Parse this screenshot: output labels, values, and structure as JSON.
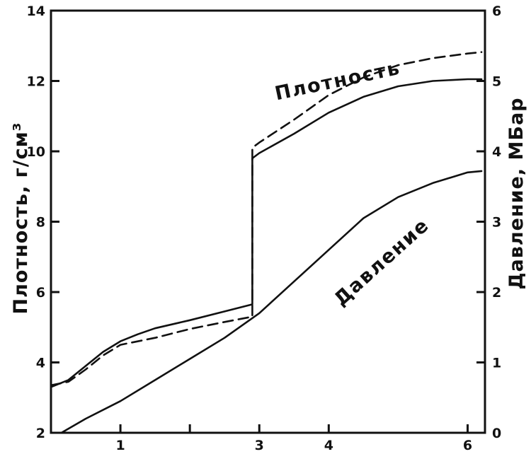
{
  "chart_data": {
    "type": "line",
    "x_ticks": [
      1,
      2,
      3,
      4,
      6
    ],
    "x_tick_labels": [
      "1",
      "",
      "3",
      "4",
      "6"
    ],
    "xlim": [
      0,
      6.25
    ],
    "y_left": {
      "label": "Плотность, г/см³",
      "lim": [
        2,
        14
      ],
      "ticks": [
        2,
        4,
        6,
        8,
        10,
        12,
        14
      ]
    },
    "y_right": {
      "label": "Давление, МБар",
      "lim": [
        0,
        6
      ],
      "ticks": [
        0,
        1,
        2,
        3,
        4,
        5,
        6
      ]
    },
    "series": [
      {
        "name": "Плотность",
        "axis": "left",
        "style": "solid",
        "x": [
          0,
          0.25,
          0.5,
          0.75,
          1.0,
          1.25,
          1.5,
          2.0,
          2.5,
          2.9,
          2.9,
          3.0,
          3.5,
          4.0,
          4.5,
          5.0,
          5.5,
          6.0,
          6.2
        ],
        "y": [
          3.3,
          3.5,
          3.9,
          4.3,
          4.6,
          4.8,
          4.97,
          5.2,
          5.45,
          5.65,
          9.8,
          9.95,
          10.5,
          11.1,
          11.55,
          11.85,
          12.0,
          12.05,
          12.05
        ]
      },
      {
        "name": "",
        "axis": "left",
        "style": "dashed",
        "x": [
          0,
          0.25,
          0.5,
          0.75,
          1.0,
          1.5,
          2.0,
          2.5,
          2.9,
          2.9,
          3.0,
          3.5,
          4.0,
          4.5,
          5.0,
          5.5,
          6.0,
          6.2
        ],
        "y": [
          3.35,
          3.45,
          3.8,
          4.2,
          4.5,
          4.7,
          4.95,
          5.15,
          5.3,
          10.1,
          10.25,
          10.9,
          11.6,
          12.1,
          12.45,
          12.65,
          12.78,
          12.82
        ]
      },
      {
        "name": "Давление",
        "axis": "right",
        "style": "solid",
        "x": [
          0.15,
          0.5,
          1.0,
          1.5,
          2.0,
          2.5,
          3.0,
          3.5,
          4.0,
          4.5,
          5.0,
          5.5,
          6.0,
          6.2
        ],
        "y": [
          0.0,
          0.2,
          0.45,
          0.75,
          1.05,
          1.35,
          1.7,
          2.15,
          2.6,
          3.05,
          3.35,
          3.55,
          3.7,
          3.72
        ]
      }
    ],
    "annotations": [
      {
        "text": "Плотность",
        "series": "Плотность"
      },
      {
        "text": "Давление",
        "series": "Давление"
      }
    ]
  }
}
